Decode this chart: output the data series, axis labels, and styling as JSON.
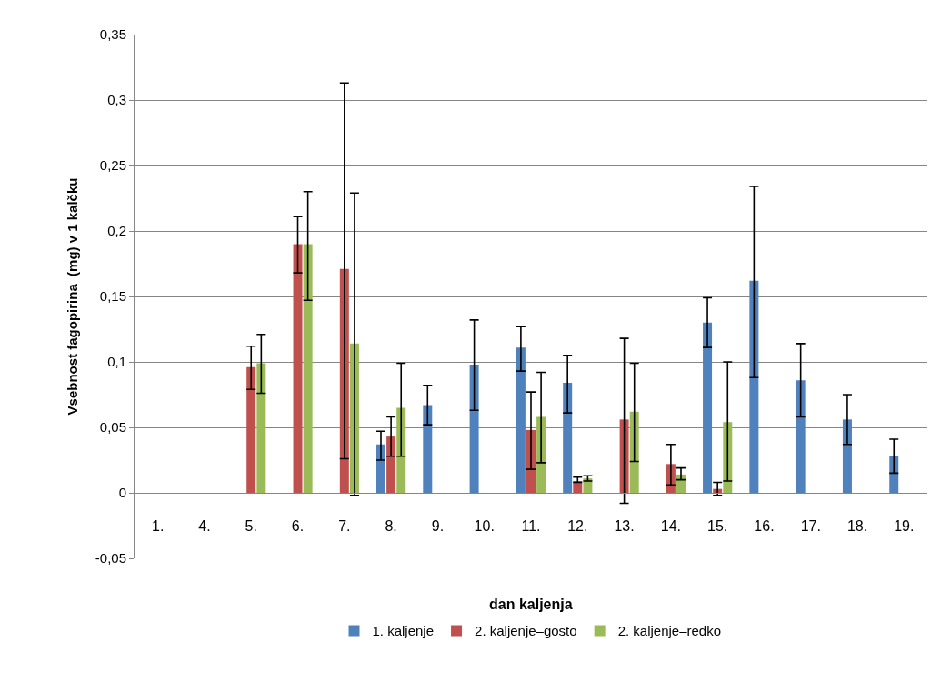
{
  "chart_data": {
    "type": "bar",
    "xlabel": "dan kaljenja",
    "ylabel": "Vsebnost fagopirina  (mg) v 1 kalčku",
    "categories": [
      "1.",
      "4.",
      "5.",
      "6.",
      "7.",
      "8.",
      "9.",
      "10.",
      "11.",
      "12.",
      "13.",
      "14.",
      "15.",
      "16.",
      "17.",
      "18.",
      "19."
    ],
    "series": [
      {
        "name": "1. kaljenje",
        "color": "#4f81bd",
        "values": [
          null,
          null,
          null,
          null,
          null,
          0.037,
          0.067,
          0.098,
          0.111,
          0.084,
          null,
          null,
          0.13,
          0.162,
          0.086,
          0.056,
          0.028
        ],
        "errors": [
          null,
          null,
          null,
          null,
          null,
          [
            0.025,
            0.047
          ],
          [
            0.052,
            0.082
          ],
          [
            0.063,
            0.132
          ],
          [
            0.093,
            0.127
          ],
          [
            0.061,
            0.105
          ],
          null,
          null,
          [
            0.111,
            0.149
          ],
          [
            0.088,
            0.234
          ],
          [
            0.058,
            0.114
          ],
          [
            0.037,
            0.075
          ],
          [
            0.015,
            0.041
          ]
        ]
      },
      {
        "name": "2. kaljenje–gosto",
        "color": "#c0504d",
        "values": [
          null,
          null,
          0.096,
          0.19,
          0.171,
          0.043,
          null,
          null,
          0.048,
          0.009,
          0.056,
          0.022,
          0.003,
          null,
          null,
          null,
          null
        ],
        "errors": [
          null,
          null,
          [
            0.079,
            0.112
          ],
          [
            0.168,
            0.211
          ],
          [
            0.026,
            0.313
          ],
          [
            0.028,
            0.058
          ],
          null,
          null,
          [
            0.018,
            0.077
          ],
          [
            0.008,
            0.012
          ],
          [
            -0.008,
            0.118
          ],
          [
            0.006,
            0.037
          ],
          [
            -0.002,
            0.008
          ],
          null,
          null,
          null,
          null
        ]
      },
      {
        "name": "2. kaljenje–redko",
        "color": "#9bbb59",
        "values": [
          null,
          null,
          0.099,
          0.19,
          0.114,
          0.065,
          null,
          null,
          0.058,
          0.011,
          0.062,
          0.014,
          0.054,
          null,
          null,
          null,
          null
        ],
        "errors": [
          null,
          null,
          [
            0.076,
            0.121
          ],
          [
            0.147,
            0.23
          ],
          [
            -0.002,
            0.229
          ],
          [
            0.028,
            0.099
          ],
          null,
          null,
          [
            0.023,
            0.092
          ],
          [
            0.009,
            0.013
          ],
          [
            0.024,
            0.099
          ],
          [
            0.01,
            0.019
          ],
          [
            0.009,
            0.1
          ],
          null,
          null,
          null,
          null
        ]
      }
    ],
    "ylim": [
      -0.05,
      0.35
    ],
    "yticks": [
      {
        "value": -0.05,
        "label": "-0,05"
      },
      0,
      {
        "value": 0.05,
        "label": "0,05"
      },
      {
        "value": 0.1,
        "label": "0,1"
      },
      {
        "value": 0.15,
        "label": "0,15"
      },
      {
        "value": 0.2,
        "label": "0,2"
      },
      {
        "value": 0.25,
        "label": "0,25"
      },
      {
        "value": 0.3,
        "label": "0,3"
      },
      {
        "value": 0.35,
        "label": "0,35"
      }
    ],
    "grid": "y",
    "legend": "bottom"
  }
}
